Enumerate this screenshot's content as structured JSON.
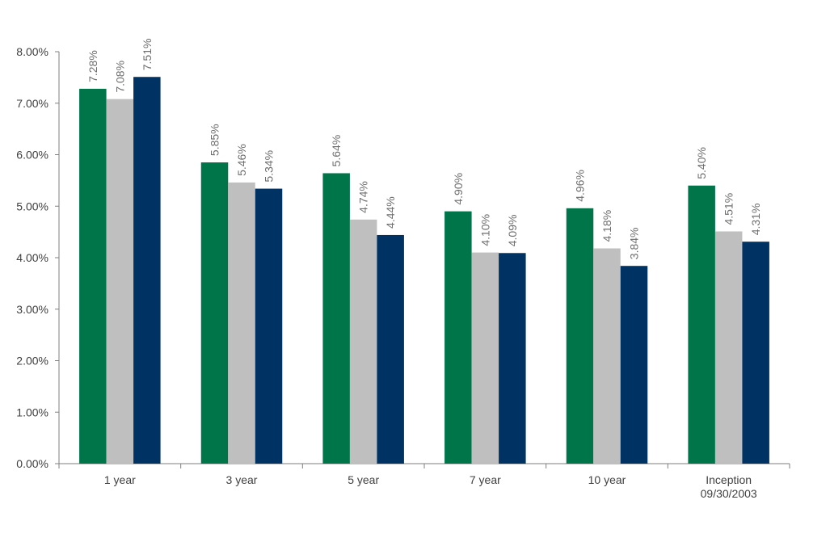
{
  "chart_data": {
    "type": "bar",
    "categories": [
      "1 year",
      "3 year",
      "5 year",
      "7 year",
      "10 year",
      "Inception\n09/30/2003"
    ],
    "series": [
      {
        "values": [
          7.28,
          5.85,
          5.64,
          4.9,
          4.96,
          5.4
        ],
        "labels": [
          "7.28%",
          "5.85%",
          "5.64%",
          "4.90%",
          "4.96%",
          "5.40%"
        ],
        "color": "#00754a"
      },
      {
        "values": [
          7.08,
          5.46,
          4.74,
          4.1,
          4.18,
          4.51
        ],
        "labels": [
          "7.08%",
          "5.46%",
          "4.74%",
          "4.10%",
          "4.18%",
          "4.51%"
        ],
        "color": "#bfbfbf"
      },
      {
        "values": [
          7.51,
          5.34,
          4.44,
          4.09,
          3.84,
          4.31
        ],
        "labels": [
          "7.51%",
          "5.34%",
          "4.44%",
          "4.09%",
          "3.84%",
          "4.31%"
        ],
        "color": "#003264"
      }
    ],
    "ylim": [
      0,
      8
    ],
    "yticks": [
      "0.00%",
      "1.00%",
      "2.00%",
      "3.00%",
      "4.00%",
      "5.00%",
      "6.00%",
      "7.00%",
      "8.00%"
    ],
    "ytick_values": [
      0,
      1,
      2,
      3,
      4,
      5,
      6,
      7,
      8
    ],
    "title": "",
    "xlabel": "",
    "ylabel": "",
    "grid": false,
    "legend": "none"
  }
}
